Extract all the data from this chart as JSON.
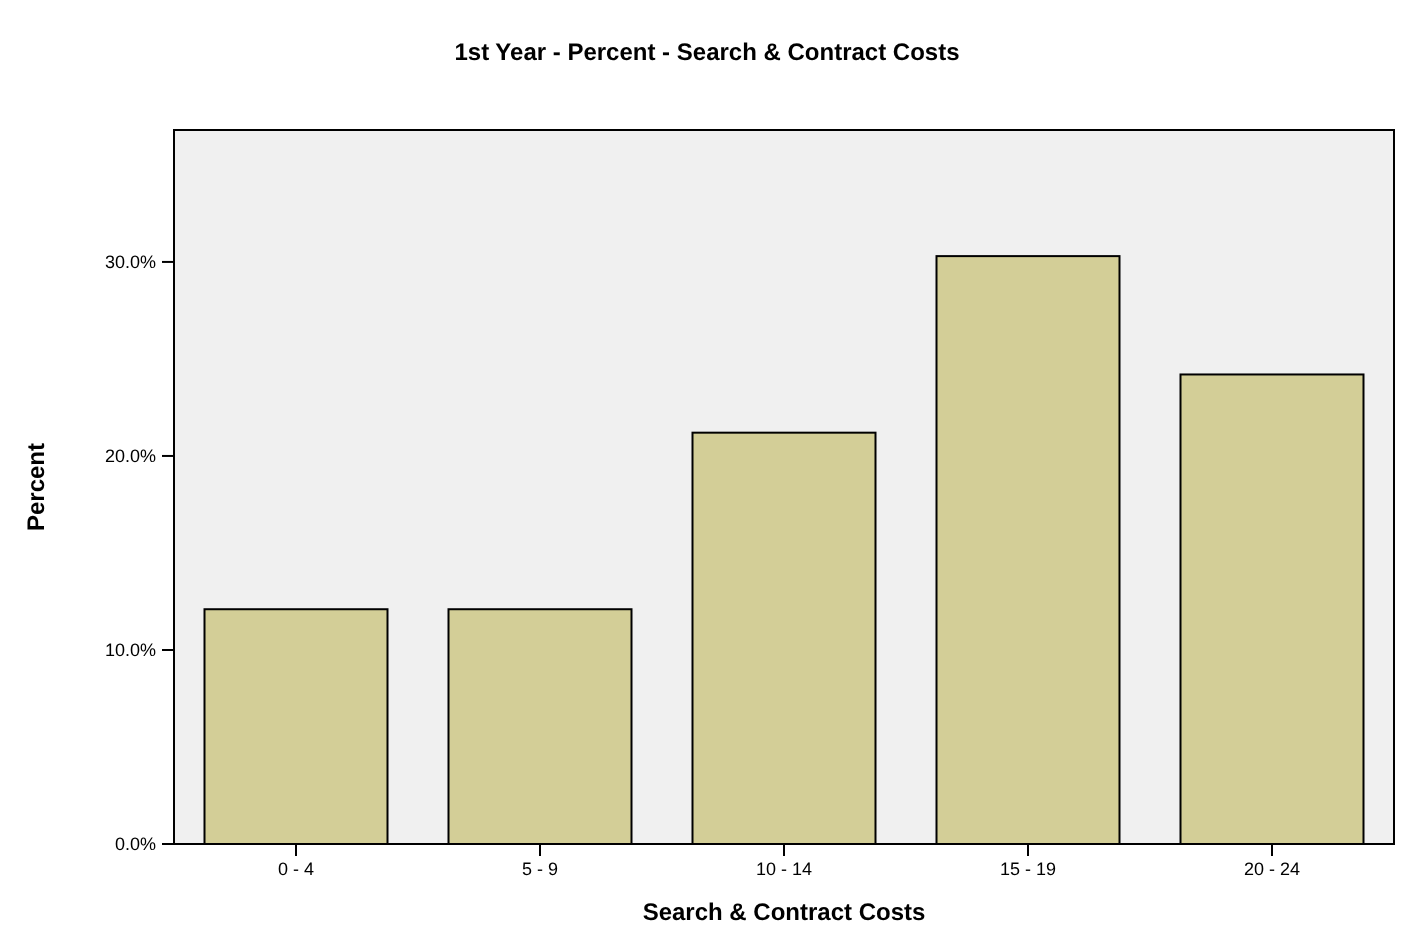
{
  "chart_data": {
    "type": "bar",
    "title": "1st Year - Percent - Search & Contract Costs",
    "xlabel": "Search & Contract Costs",
    "ylabel": "Percent",
    "categories": [
      "0 - 4",
      "5 - 9",
      "10 - 14",
      "15 - 19",
      "20 - 24"
    ],
    "values": [
      12.1,
      12.1,
      21.2,
      30.3,
      24.2
    ],
    "color": "#d3ce97",
    "ylim": [
      0,
      36.8
    ],
    "yticks": [
      {
        "value": 0,
        "label": "0.0%"
      },
      {
        "value": 10,
        "label": "10.0%"
      },
      {
        "value": 20,
        "label": "20.0%"
      },
      {
        "value": 30,
        "label": "30.0%"
      }
    ],
    "grid": false
  }
}
